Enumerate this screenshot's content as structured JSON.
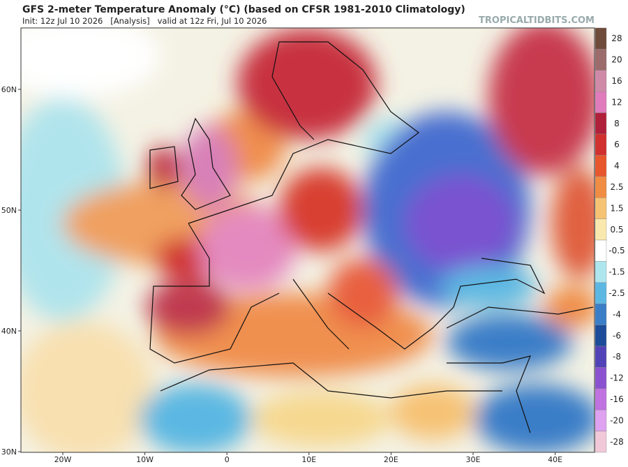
{
  "header": {
    "title": "GFS 2-meter Temperature Anomaly (°C) (based on CFSR 1981-2010 Climatology)",
    "subtitle": "Init: 12z Jul 10 2026   [Analysis]   valid at 12z Fri, Jul 10 2026",
    "watermark": "TROPICALTIDBITS.COM"
  },
  "map": {
    "lat_labels": [
      "60N",
      "50N",
      "40N",
      "30N"
    ],
    "lon_labels": [
      "20W",
      "10W",
      "0",
      "10E",
      "20E",
      "30E",
      "40E"
    ]
  },
  "colorbar": {
    "levels": [
      28,
      20,
      16,
      12,
      8,
      6,
      4,
      2.5,
      1.5,
      0.5,
      -0.5,
      -1.5,
      -2.5,
      -4,
      -6,
      -8,
      -12,
      -16,
      -20,
      -28
    ],
    "colors": [
      "#6e4b3a",
      "#9c6b6b",
      "#cf8aa8",
      "#e07cbc",
      "#b0203a",
      "#d0302e",
      "#e8562c",
      "#f08c44",
      "#f6c274",
      "#fae9ae",
      "#ffffff",
      "#aee6ee",
      "#5cb8e2",
      "#3a7ec8",
      "#1c4c9a",
      "#5242b8",
      "#8a52d0",
      "#bf72e0",
      "#dea2f0",
      "#f0c8d8"
    ]
  }
}
